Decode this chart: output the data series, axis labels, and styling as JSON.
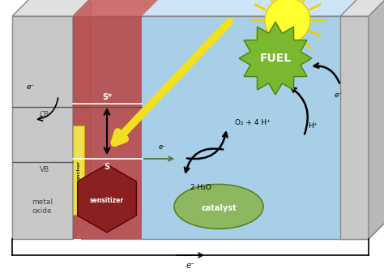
{
  "fig_width": 4.74,
  "fig_height": 3.37,
  "bg_color": "#ffffff",
  "labels": {
    "CB": "CB",
    "VB": "VB",
    "metal_oxide": "metal\noxide",
    "anchor": "anchor",
    "sensitizer": "sensitizer",
    "catalyst": "catalyst",
    "S_star": "S*",
    "S": "S",
    "fuel": "FUEL",
    "O2_4H": "O₂ + 4 H⁺",
    "H_plus": "H⁺",
    "2H2O": "2 H₂O",
    "e_bottom": "e⁻",
    "e_left_top": "e⁻",
    "e_mid": "e⁻",
    "e_right": "e⁻"
  },
  "colors": {
    "box_front": "#a8cfe8",
    "box_top": "#cce4f5",
    "box_right": "#88b8d8",
    "electrode_front": "#c8c8c8",
    "electrode_top": "#e0e0e0",
    "electrode_side": "#a8a8a8",
    "sens_layer": "#b84848",
    "sens_layer_top": "#cc6060",
    "sens_hex": "#8a2020",
    "anchor_fill": "#f0e050",
    "catalyst_fill": "#8db860",
    "catalyst_edge": "#5a8020",
    "fuel_fill": "#7ab830",
    "fuel_edge": "#4a8010",
    "sun_fill": "#ffff30",
    "sun_edge": "#e8c800",
    "sun_ray": "#f0d000",
    "arrow_black": "#111111",
    "arrow_yellow": "#f0e020",
    "arrow_green": "#507030"
  }
}
